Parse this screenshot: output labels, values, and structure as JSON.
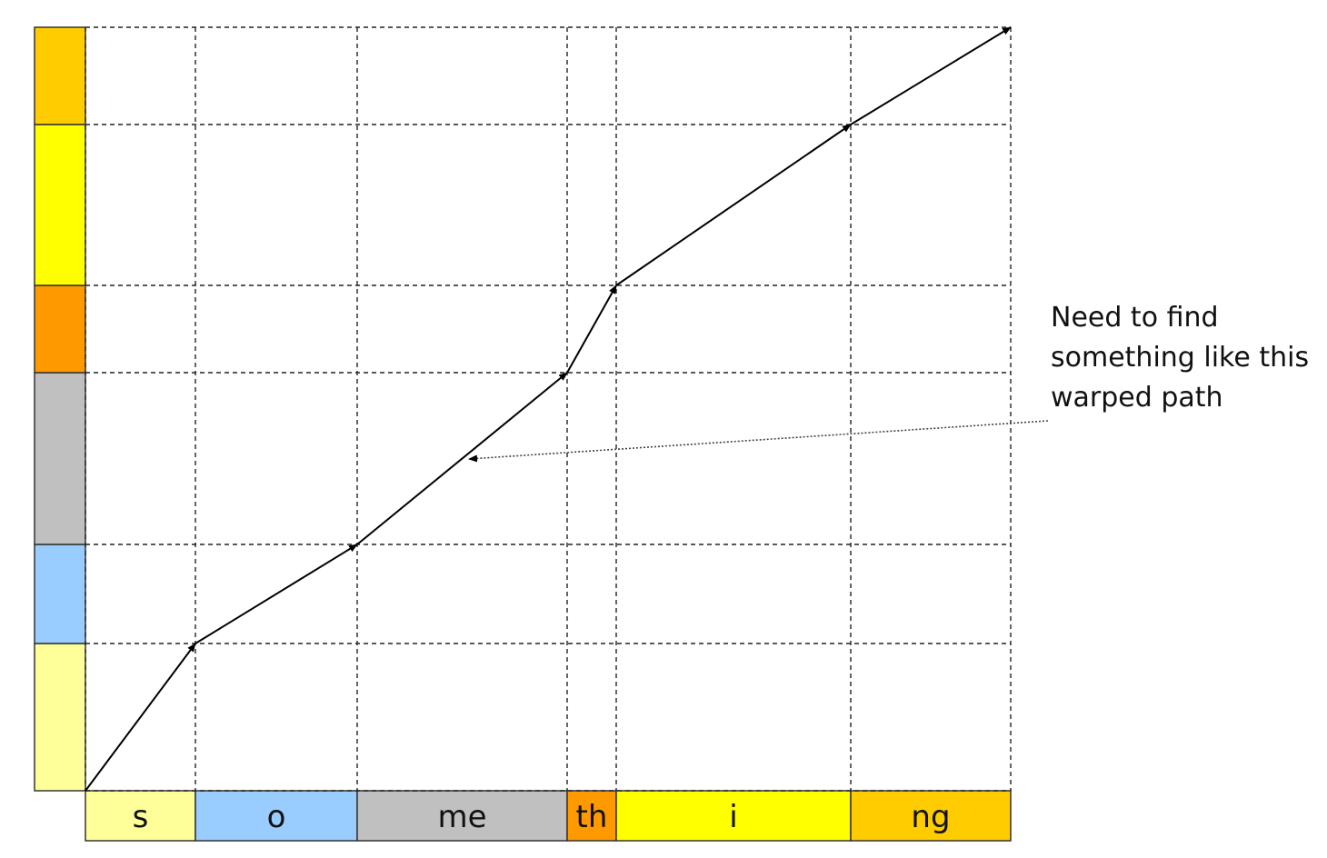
{
  "bottom_segments": [
    {
      "label": "s",
      "color": "#FFFF99"
    },
    {
      "label": "o",
      "color": "#99CCFF"
    },
    {
      "label": "me",
      "color": "#C0C0C0"
    },
    {
      "label": "th",
      "color": "#FF9900"
    },
    {
      "label": "i",
      "color": "#FFFF00"
    },
    {
      "label": "ng",
      "color": "#FFCC00"
    }
  ],
  "left_segments": [
    {
      "color": "#FFFF99"
    },
    {
      "color": "#99CCFF"
    },
    {
      "color": "#C0C0C0"
    },
    {
      "color": "#FF9900"
    },
    {
      "color": "#FFFF00"
    },
    {
      "color": "#FFCC00"
    }
  ],
  "annotation": {
    "line1": "Need to find",
    "line2": "something like this",
    "line3": "warped path"
  },
  "colors": {
    "grid": "#222222",
    "path": "#000000",
    "border": "#333333"
  }
}
